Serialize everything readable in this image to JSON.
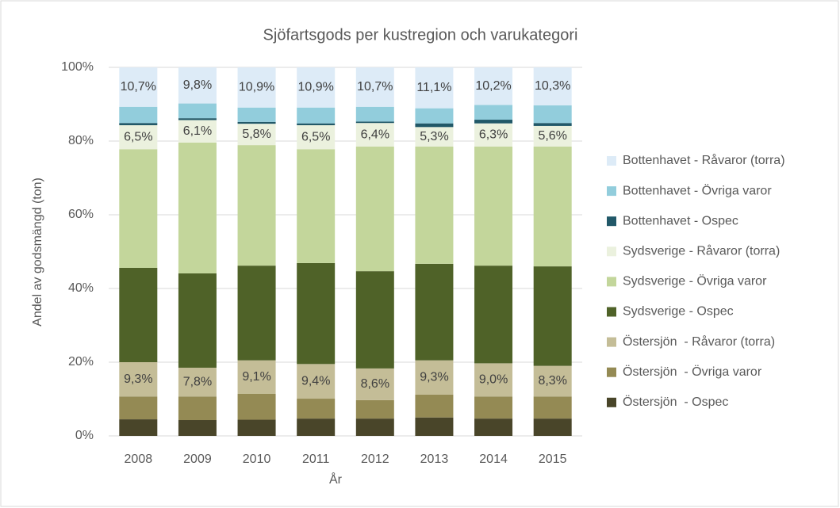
{
  "chart_data": {
    "type": "stacked_bar",
    "title": "Sjöfartsgods per kustregion och varukategori",
    "x_label": "År",
    "y_label": "Andel av godsmängd (ton)",
    "categories": [
      "2008",
      "2009",
      "2010",
      "2011",
      "2012",
      "2013",
      "2014",
      "2015"
    ],
    "ylim": [
      0,
      100
    ],
    "yticks": [
      {
        "value": 0,
        "label": "0%"
      },
      {
        "value": 20,
        "label": "20%"
      },
      {
        "value": 40,
        "label": "40%"
      },
      {
        "value": 60,
        "label": "60%"
      },
      {
        "value": 80,
        "label": "80%"
      },
      {
        "value": 100,
        "label": "100%"
      }
    ],
    "grid": true,
    "legend": "right",
    "series": [
      {
        "name": "Östersjön  - Ospec",
        "color": "#494529",
        "values": [
          4.5,
          4.3,
          4.4,
          4.7,
          4.7,
          5.0,
          4.7,
          4.7
        ]
      },
      {
        "name": "Östersjön  - Övriga varor",
        "color": "#948a54",
        "values": [
          6.2,
          6.4,
          7.0,
          5.4,
          5.0,
          6.2,
          6.0,
          6.0
        ]
      },
      {
        "name": "Östersjön  - Råvaror (torra)",
        "color": "#c4bd97",
        "values": [
          9.3,
          7.8,
          9.1,
          9.4,
          8.6,
          9.3,
          9.0,
          8.3
        ],
        "value_labels": [
          "9,3%",
          "7,8%",
          "9,1%",
          "9,4%",
          "8,6%",
          "9,3%",
          "9,0%",
          "8,3%"
        ]
      },
      {
        "name": "Sydsverige - Ospec",
        "color": "#4f6228",
        "values": [
          25.6,
          25.6,
          25.7,
          27.4,
          26.4,
          26.2,
          26.5,
          27.0
        ]
      },
      {
        "name": "Sydsverige - Övriga varor",
        "color": "#c3d69b",
        "values": [
          32.2,
          35.5,
          32.7,
          30.9,
          33.8,
          31.8,
          32.3,
          32.5
        ]
      },
      {
        "name": "Sydsverige - Råvaror (torra)",
        "color": "#ebf1de",
        "values": [
          6.5,
          6.1,
          5.8,
          6.5,
          6.4,
          5.3,
          6.3,
          5.6
        ],
        "value_labels": [
          "6,5%",
          "6,1%",
          "5,8%",
          "6,5%",
          "6,4%",
          "5,3%",
          "6,3%",
          "5,6%"
        ]
      },
      {
        "name": "Bottenhavet - Ospec",
        "color": "#215868",
        "values": [
          0.6,
          0.5,
          0.5,
          0.5,
          0.4,
          1.0,
          1.0,
          0.8
        ]
      },
      {
        "name": "Bottenhavet - Övriga varor",
        "color": "#92cddc",
        "values": [
          4.4,
          4.0,
          3.9,
          4.3,
          4.0,
          4.1,
          4.0,
          4.8
        ]
      },
      {
        "name": "Bottenhavet - Råvaror (torra)",
        "color": "#ddebf7",
        "values": [
          10.7,
          9.8,
          10.9,
          10.9,
          10.7,
          11.1,
          10.2,
          10.3
        ],
        "value_labels": [
          "10,7%",
          "9,8%",
          "10,9%",
          "10,9%",
          "10,7%",
          "11,1%",
          "10,2%",
          "10,3%"
        ]
      }
    ]
  }
}
